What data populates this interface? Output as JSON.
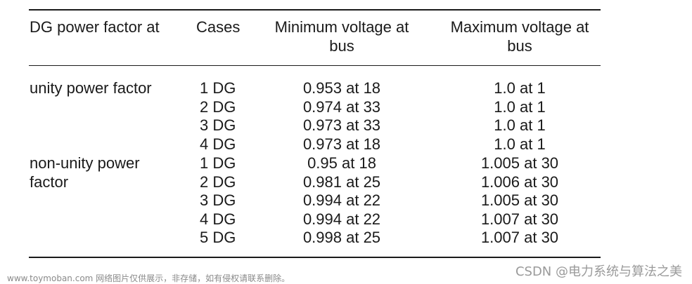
{
  "table": {
    "headers": {
      "dg_pf": "DG power factor at",
      "cases": "Cases",
      "min_line1": "Minimum voltage at",
      "min_line2": "bus",
      "max_line1": "Maximum voltage at",
      "max_line2": "bus"
    },
    "groups": [
      {
        "label_line1": "unity power factor",
        "label_line2": "",
        "rows": [
          {
            "case": "1 DG",
            "min": "0.953 at 18",
            "max": "1.0 at 1"
          },
          {
            "case": "2 DG",
            "min": "0.974 at 33",
            "max": "1.0 at 1"
          },
          {
            "case": "3 DG",
            "min": "0.973 at 33",
            "max": "1.0 at 1"
          },
          {
            "case": "4 DG",
            "min": "0.973 at 18",
            "max": "1.0 at 1"
          }
        ]
      },
      {
        "label_line1": "non-unity power",
        "label_line2": "factor",
        "rows": [
          {
            "case": "1 DG",
            "min": "0.95 at 18",
            "max": "1.005 at 30"
          },
          {
            "case": "2 DG",
            "min": "0.981 at 25",
            "max": "1.006 at 30"
          },
          {
            "case": "3 DG",
            "min": "0.994 at 22",
            "max": "1.005 at 30"
          },
          {
            "case": "4 DG",
            "min": "0.994 at 22",
            "max": "1.007 at 30"
          },
          {
            "case": "5 DG",
            "min": "0.998 at 25",
            "max": "1.007 at 30"
          }
        ]
      }
    ]
  },
  "watermarks": {
    "left": "www.toymoban.com 网络图片仅供展示，非存储，如有侵权请联系删除。",
    "right": "CSDN @电力系统与算法之美"
  }
}
